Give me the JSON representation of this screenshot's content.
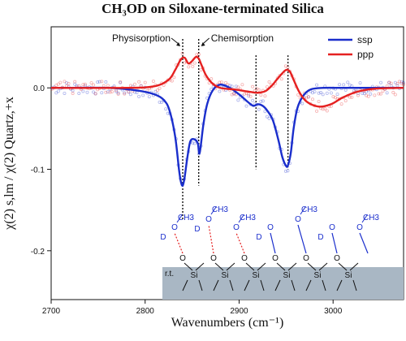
{
  "chart_data": {
    "type": "line",
    "title": "CH₃OD on Siloxane-terminated Silica",
    "xlabel": "Wavenumbers (cm⁻¹)",
    "ylabel": "χ(2) s,lm / χ(2) Quartz,+x",
    "xlim": [
      2700,
      3075
    ],
    "ylim": [
      -0.26,
      0.075
    ],
    "x_ticks": [
      2700,
      2800,
      2900,
      3000
    ],
    "y_ticks": [
      0.0,
      -0.1,
      -0.2
    ],
    "y_tick_labels": [
      "0.0",
      "-0.1",
      "-0.2"
    ],
    "grid": false,
    "legend_position": "top-right",
    "series": [
      {
        "name": "ssp",
        "color": "#1a2ecc",
        "x": [
          2700,
          2760,
          2790,
          2810,
          2820,
          2826,
          2832,
          2836,
          2838,
          2840,
          2842,
          2845,
          2848,
          2852,
          2856,
          2858,
          2862,
          2866,
          2872,
          2880,
          2890,
          2900,
          2908,
          2915,
          2920,
          2925,
          2930,
          2936,
          2942,
          2946,
          2950,
          2952,
          2955,
          2958,
          2962,
          2968,
          2976,
          2990,
          3010,
          3040,
          3075
        ],
        "y": [
          0.0,
          0.0,
          -0.003,
          -0.008,
          -0.015,
          -0.028,
          -0.06,
          -0.1,
          -0.115,
          -0.12,
          -0.11,
          -0.085,
          -0.066,
          -0.063,
          -0.068,
          -0.08,
          -0.045,
          -0.02,
          -0.003,
          0.004,
          0.0,
          -0.008,
          -0.016,
          -0.022,
          -0.02,
          -0.022,
          -0.028,
          -0.04,
          -0.065,
          -0.085,
          -0.096,
          -0.095,
          -0.08,
          -0.05,
          -0.025,
          -0.01,
          -0.002,
          0.0,
          0.0,
          0.0,
          0.0
        ]
      },
      {
        "name": "ppp",
        "color": "#e52020",
        "x": [
          2700,
          2780,
          2810,
          2825,
          2832,
          2838,
          2842,
          2846,
          2850,
          2854,
          2857,
          2860,
          2865,
          2872,
          2880,
          2895,
          2912,
          2920,
          2928,
          2935,
          2940,
          2946,
          2950,
          2954,
          2958,
          2964,
          2972,
          2985,
          2998,
          3010,
          3025,
          3045,
          3075
        ],
        "y": [
          0.0,
          0.0,
          0.002,
          0.01,
          0.022,
          0.035,
          0.037,
          0.03,
          0.033,
          0.038,
          0.036,
          0.028,
          0.015,
          0.005,
          0.0,
          -0.002,
          -0.005,
          -0.006,
          -0.004,
          0.003,
          0.01,
          0.018,
          0.022,
          0.02,
          0.01,
          -0.005,
          -0.017,
          -0.023,
          -0.02,
          -0.012,
          -0.005,
          -0.001,
          0.0
        ]
      }
    ],
    "annotations": [
      {
        "text": "Physisorption",
        "x": 2840
      },
      {
        "text": "Chemisorption",
        "x": 2857
      }
    ],
    "marker_lines_x": [
      2840,
      2857,
      2918,
      2952
    ],
    "schematic": {
      "substrate_label": "r.t.",
      "molecules": [
        {
          "d": "D",
          "o": "O",
          "ch3": "CH3"
        },
        {
          "d": "D",
          "o": "O",
          "ch3": "CH3"
        },
        {
          "d": "",
          "o": "O",
          "ch3": "CH3"
        },
        {
          "d": "D",
          "o": "O",
          "ch3": ""
        },
        {
          "d": "",
          "o": "O",
          "ch3": "CH3"
        },
        {
          "d": "D",
          "o": "O",
          "ch3": ""
        },
        {
          "d": "",
          "o": "O",
          "ch3": "CH3"
        }
      ],
      "atoms": [
        "O",
        "Si",
        "O",
        "Si",
        "O",
        "Si",
        "O",
        "Si",
        "O",
        "Si",
        "O",
        "Si"
      ]
    }
  }
}
